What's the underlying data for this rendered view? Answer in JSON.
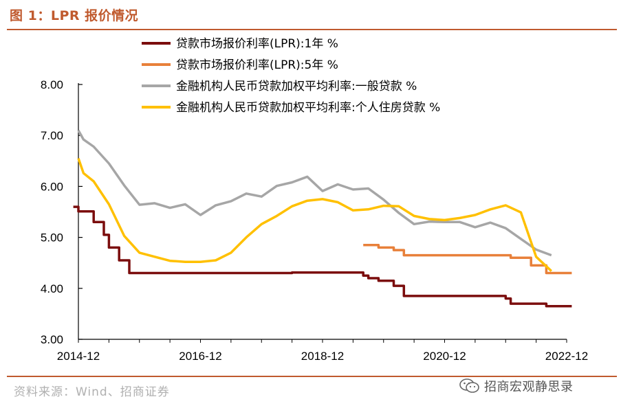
{
  "figure": {
    "title": "图 1：LPR 报价情况",
    "source": "资料来源：Wind、招商证券",
    "watermark": "招商宏观静思录",
    "watermark_icon": "wechat-icon"
  },
  "chart_data": {
    "type": "line",
    "ylim": [
      3.0,
      8.0
    ],
    "yticks": [
      "3.00",
      "4.00",
      "5.00",
      "6.00",
      "7.00",
      "8.00"
    ],
    "xlim": [
      "2014-12",
      "2022-12"
    ],
    "xticks": [
      "2014-12",
      "2016-12",
      "2018-12",
      "2020-12",
      "2022-12"
    ],
    "grid": false,
    "legend_position": "top",
    "series": [
      {
        "name": "贷款市场报价利率(LPR):1年 %",
        "color": "#7b0d0d",
        "step": true,
        "points": [
          [
            "2014-11",
            5.6
          ],
          [
            "2014-12",
            5.51
          ],
          [
            "2015-03",
            5.3
          ],
          [
            "2015-05",
            5.05
          ],
          [
            "2015-06",
            4.8
          ],
          [
            "2015-08",
            4.55
          ],
          [
            "2015-10",
            4.3
          ],
          [
            "2016-12",
            4.3
          ],
          [
            "2017-12",
            4.3
          ],
          [
            "2018-06",
            4.31
          ],
          [
            "2019-07",
            4.31
          ],
          [
            "2019-08",
            4.25
          ],
          [
            "2019-09",
            4.2
          ],
          [
            "2019-11",
            4.15
          ],
          [
            "2020-02",
            4.05
          ],
          [
            "2020-04",
            3.85
          ],
          [
            "2021-12",
            3.8
          ],
          [
            "2022-01",
            3.7
          ],
          [
            "2022-08",
            3.65
          ],
          [
            "2023-01",
            3.65
          ]
        ]
      },
      {
        "name": "贷款市场报价利率(LPR):5年 %",
        "color": "#e8803a",
        "step": true,
        "points": [
          [
            "2019-08",
            4.85
          ],
          [
            "2019-11",
            4.8
          ],
          [
            "2020-02",
            4.75
          ],
          [
            "2020-04",
            4.65
          ],
          [
            "2021-12",
            4.65
          ],
          [
            "2022-01",
            4.6
          ],
          [
            "2022-05",
            4.45
          ],
          [
            "2022-08",
            4.3
          ],
          [
            "2023-01",
            4.3
          ]
        ]
      },
      {
        "name": "金融机构人民币贷款加权平均利率:一般贷款 %",
        "color": "#a6a6a6",
        "step": false,
        "points": [
          [
            "2014-12",
            7.1
          ],
          [
            "2015-01",
            6.92
          ],
          [
            "2015-03",
            6.78
          ],
          [
            "2015-06",
            6.45
          ],
          [
            "2015-09",
            6.02
          ],
          [
            "2015-12",
            5.64
          ],
          [
            "2016-03",
            5.67
          ],
          [
            "2016-06",
            5.58
          ],
          [
            "2016-09",
            5.65
          ],
          [
            "2016-12",
            5.44
          ],
          [
            "2017-03",
            5.63
          ],
          [
            "2017-06",
            5.71
          ],
          [
            "2017-09",
            5.86
          ],
          [
            "2017-12",
            5.8
          ],
          [
            "2018-03",
            6.01
          ],
          [
            "2018-06",
            6.08
          ],
          [
            "2018-09",
            6.19
          ],
          [
            "2018-12",
            5.91
          ],
          [
            "2019-03",
            6.04
          ],
          [
            "2019-06",
            5.94
          ],
          [
            "2019-09",
            5.96
          ],
          [
            "2019-12",
            5.74
          ],
          [
            "2020-03",
            5.48
          ],
          [
            "2020-06",
            5.26
          ],
          [
            "2020-09",
            5.31
          ],
          [
            "2020-12",
            5.3
          ],
          [
            "2021-03",
            5.3
          ],
          [
            "2021-06",
            5.2
          ],
          [
            "2021-09",
            5.29
          ],
          [
            "2021-12",
            5.18
          ],
          [
            "2022-03",
            4.97
          ],
          [
            "2022-06",
            4.76
          ],
          [
            "2022-09",
            4.65
          ]
        ]
      },
      {
        "name": "金融机构人民币贷款加权平均利率:个人住房贷款 %",
        "color": "#ffc000",
        "step": false,
        "points": [
          [
            "2014-12",
            6.55
          ],
          [
            "2015-01",
            6.26
          ],
          [
            "2015-03",
            6.1
          ],
          [
            "2015-06",
            5.65
          ],
          [
            "2015-09",
            5.03
          ],
          [
            "2015-12",
            4.7
          ],
          [
            "2016-03",
            4.62
          ],
          [
            "2016-06",
            4.54
          ],
          [
            "2016-09",
            4.52
          ],
          [
            "2016-12",
            4.52
          ],
          [
            "2017-03",
            4.55
          ],
          [
            "2017-06",
            4.7
          ],
          [
            "2017-09",
            5.0
          ],
          [
            "2017-12",
            5.26
          ],
          [
            "2018-03",
            5.42
          ],
          [
            "2018-06",
            5.61
          ],
          [
            "2018-09",
            5.72
          ],
          [
            "2018-12",
            5.75
          ],
          [
            "2019-03",
            5.69
          ],
          [
            "2019-06",
            5.53
          ],
          [
            "2019-09",
            5.55
          ],
          [
            "2019-12",
            5.62
          ],
          [
            "2020-03",
            5.61
          ],
          [
            "2020-06",
            5.42
          ],
          [
            "2020-09",
            5.36
          ],
          [
            "2020-12",
            5.34
          ],
          [
            "2021-03",
            5.38
          ],
          [
            "2021-06",
            5.44
          ],
          [
            "2021-09",
            5.55
          ],
          [
            "2021-12",
            5.63
          ],
          [
            "2022-03",
            5.49
          ],
          [
            "2022-06",
            4.62
          ],
          [
            "2022-09",
            4.34
          ]
        ]
      }
    ]
  }
}
